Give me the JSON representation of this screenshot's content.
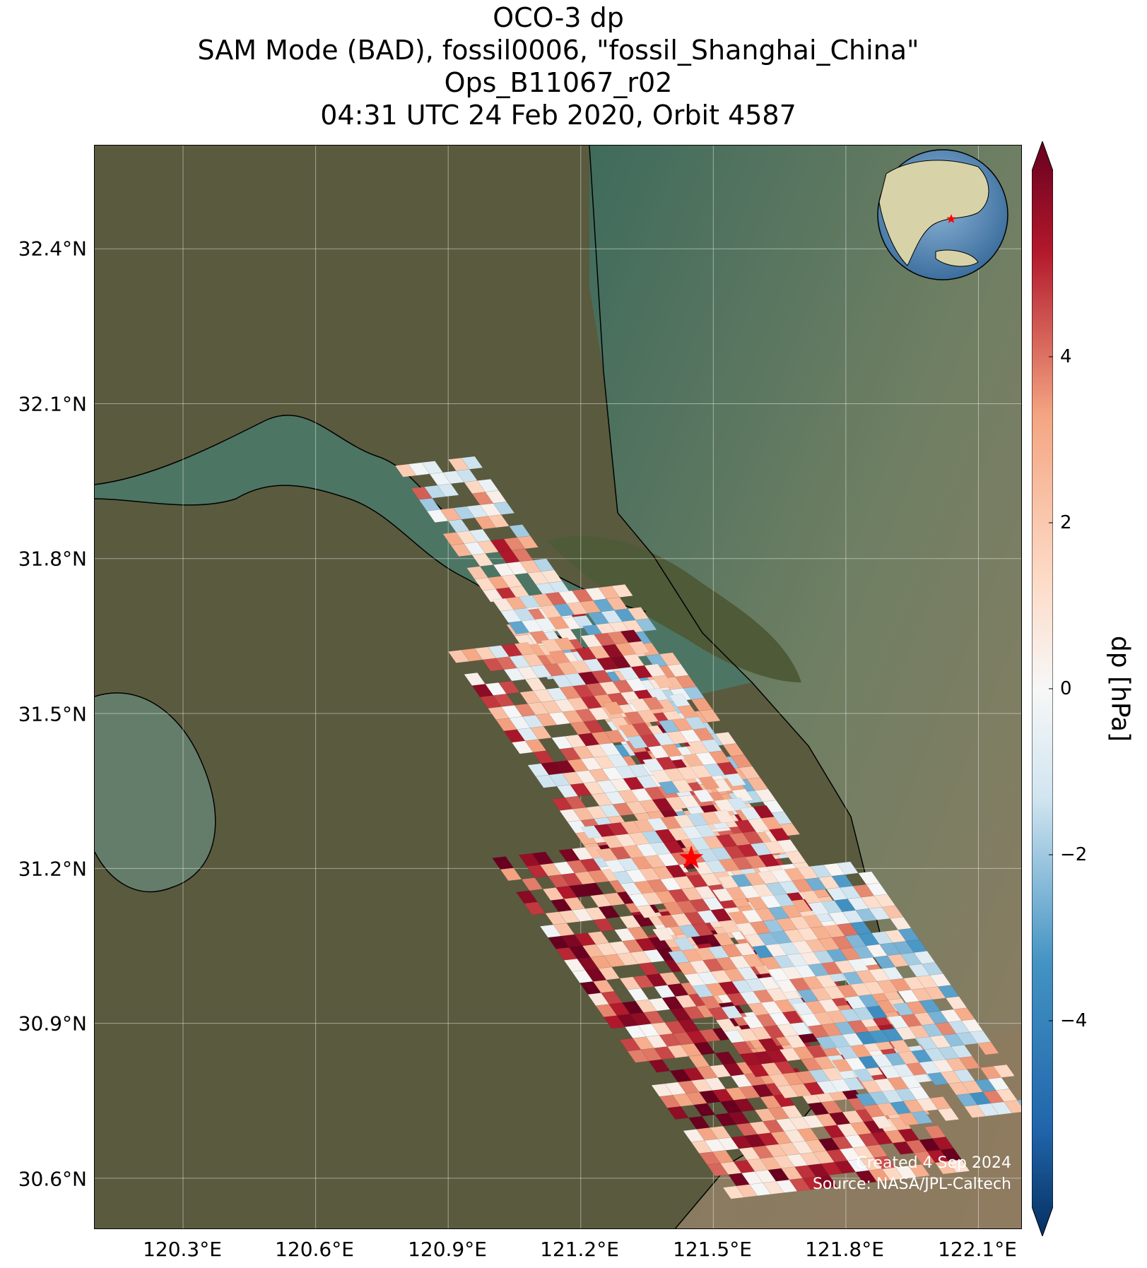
{
  "title": {
    "line1": "OCO-3 dp",
    "line2": "SAM Mode (BAD), fossil0006, \"fossil_Shanghai_China\"",
    "line3": "Ops_B11067_r02",
    "line4": "04:31 UTC 24 Feb 2020, Orbit 4587"
  },
  "map": {
    "lon_range": [
      120.1,
      122.2
    ],
    "lat_range": [
      30.5,
      32.6
    ],
    "lat_ticks": [
      "32.4°N",
      "32.1°N",
      "31.8°N",
      "31.5°N",
      "31.2°N",
      "30.9°N",
      "30.6°N"
    ],
    "lon_ticks": [
      "120.3°E",
      "120.6°E",
      "120.9°E",
      "121.2°E",
      "121.5°E",
      "121.8°E",
      "122.1°E"
    ],
    "target_marker": {
      "lon": 121.45,
      "lat": 31.22,
      "color": "#ff0000"
    },
    "inset_globe_marker_color": "#ff0000",
    "credit_line1": "Created 4 Sep 2024",
    "credit_line2": "Source: NASA/JPL-Caltech"
  },
  "colorbar": {
    "label": "dp [hPa]",
    "range": [
      -6,
      6
    ],
    "extend": "both",
    "colormap": "RdBu_r",
    "ticks": [
      "4",
      "2",
      "0",
      "−2",
      "−4"
    ]
  }
}
